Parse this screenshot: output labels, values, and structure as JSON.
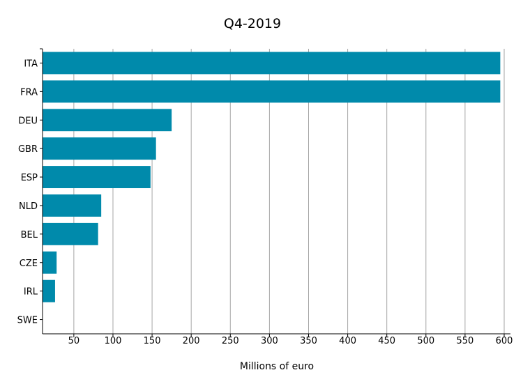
{
  "chart_data": {
    "type": "bar",
    "orientation": "horizontal",
    "title": "Q4-2019",
    "xlabel": "Millions of euro",
    "ylabel": "",
    "categories": [
      "ITA",
      "FRA",
      "DEU",
      "GBR",
      "ESP",
      "NLD",
      "BEL",
      "CZE",
      "IRL",
      "SWE"
    ],
    "values": [
      595,
      595,
      175,
      155,
      148,
      85,
      81,
      28,
      26,
      0
    ],
    "xlim": [
      10,
      600
    ],
    "xticks": [
      50,
      100,
      150,
      200,
      250,
      300,
      350,
      400,
      450,
      500,
      550,
      600
    ],
    "grid": "vertical",
    "legend": "none",
    "bar_color": "#008aab",
    "grid_color": "#a6a6a6",
    "axis_color": "#000000"
  }
}
